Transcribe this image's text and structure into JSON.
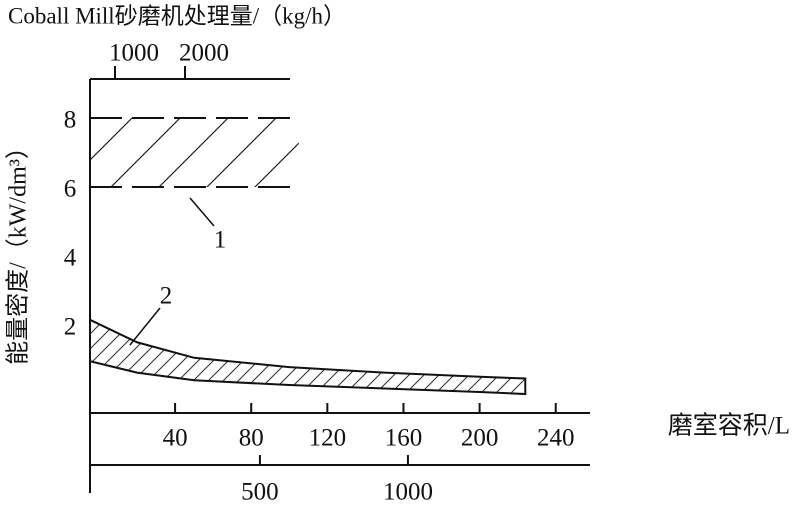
{
  "chart_data": {
    "type": "band",
    "title": "Coball Mill砂磨机处理量/（kg/h）",
    "ylabel": "能量密度/（kW/dm³）",
    "xlabel": "磨室容积/L",
    "xlim": [
      -4.7,
      258
    ],
    "xticks": [
      40,
      80,
      120,
      160,
      200,
      240
    ],
    "ylim": [
      -0.55,
      9.13
    ],
    "yticks": [
      2,
      4,
      6,
      8
    ],
    "x2lim": [
      -74,
      1615
    ],
    "x2ticks": [
      500,
      1000
    ],
    "x3lim": [
      643,
      3500
    ],
    "x3ticks": [
      1000,
      2000
    ],
    "color": "#111111",
    "bands": [
      {
        "name": "1",
        "style": "dashed",
        "x": [
          -4.7,
          105
        ],
        "upper": [
          8,
          8
        ],
        "lower": [
          6,
          6
        ]
      },
      {
        "name": "2",
        "style": "solid",
        "x": [
          -4.7,
          20,
          50,
          100,
          150,
          200,
          224
        ],
        "upper": [
          2.15,
          1.5,
          1.05,
          0.78,
          0.62,
          0.5,
          0.45
        ],
        "lower": [
          0.95,
          0.62,
          0.4,
          0.26,
          0.16,
          0.06,
          0.0
        ]
      }
    ]
  }
}
